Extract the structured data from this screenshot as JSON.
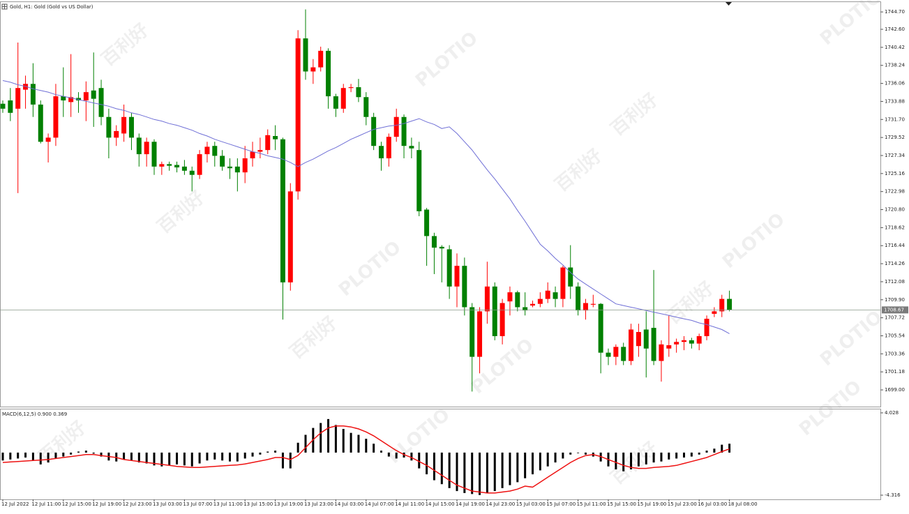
{
  "chart_data": [
    {
      "type": "candlestick",
      "title": "Gold, H1:  Gold (Gold vs US Dollar)",
      "x_labels": [
        "12 Jul 2022",
        "12 Jul 11:00",
        "12 Jul 15:00",
        "12 Jul 19:00",
        "12 Jul 23:00",
        "13 Jul 03:00",
        "13 Jul 07:00",
        "13 Jul 11:00",
        "13 Jul 15:00",
        "13 Jul 19:00",
        "13 Jul 23:00",
        "14 Jul 03:00",
        "14 Jul 07:00",
        "14 Jul 11:00",
        "14 Jul 15:00",
        "14 Jul 19:00",
        "14 Jul 23:00",
        "15 Jul 03:00",
        "15 Jul 07:00",
        "15 Jul 11:00",
        "15 Jul 15:00",
        "15 Jul 19:00",
        "15 Jul 23:00",
        "16 Jul 03:00",
        "18 Jul 08:00"
      ],
      "open": [
        1733.6,
        1734,
        1733,
        1735.3,
        1736,
        1733.5,
        1729,
        1729.5,
        1734.5,
        1733.8,
        1734.3,
        1734,
        1735.2,
        1735.5,
        1732,
        1729.5,
        1730,
        1732,
        1729.5,
        1727.5,
        1729,
        1726,
        1726.3,
        1726.2,
        1726,
        1725.5,
        1725,
        1727.5,
        1728.5,
        1727.3,
        1726,
        1726,
        1725.3,
        1727,
        1727.8,
        1728,
        1729.7,
        1729.3,
        1712,
        1723,
        1741.5,
        1737.5,
        1738,
        1740,
        1734.5,
        1733,
        1735.5,
        1735.6,
        1734.4,
        1732,
        1728.5,
        1727,
        1729.6,
        1732,
        1728.5,
        1728,
        1720.8,
        1717.6,
        1716.3,
        1716,
        1711.5,
        1714,
        1709,
        1703,
        1708.5,
        1711.5,
        1705.5,
        1709.7,
        1710.8,
        1709,
        1709.2,
        1709.4,
        1710,
        1710.8,
        1710,
        1713.8,
        1711.5,
        1708.6,
        1709.3,
        1709.4,
        1703.5,
        1703,
        1704.2,
        1702.5,
        1704.3,
        1706.3,
        1706.5,
        1702.5,
        1704,
        1704.5,
        1704.8,
        1705,
        1704.6,
        1705.5,
        1708.2,
        1708.5,
        1710
      ],
      "high": [
        1734,
        1735.5,
        1741,
        1737,
        1738.5,
        1734,
        1730,
        1736,
        1738,
        1739.6,
        1735,
        1736.3,
        1739.8,
        1736.5,
        1733,
        1731,
        1733.5,
        1732.5,
        1730,
        1729.5,
        1729.3,
        1726.6,
        1726.6,
        1726.6,
        1726.8,
        1726,
        1728,
        1729,
        1729,
        1728,
        1727,
        1727,
        1728.5,
        1729,
        1729.5,
        1730.5,
        1731,
        1729.5,
        1724,
        1742.5,
        1745,
        1739,
        1740.5,
        1740.3,
        1734.8,
        1736,
        1736,
        1736.6,
        1735,
        1732.5,
        1729,
        1730,
        1733,
        1732.3,
        1729.5,
        1729,
        1721,
        1718,
        1716.5,
        1716.5,
        1715.5,
        1715,
        1709.5,
        1709,
        1714.5,
        1712,
        1710,
        1711.5,
        1711,
        1710.8,
        1709.8,
        1710.8,
        1712,
        1711.5,
        1714,
        1716.5,
        1712,
        1710,
        1710.5,
        1709.5,
        1704,
        1704.5,
        1704.7,
        1707,
        1707,
        1708.5,
        1713.5,
        1705,
        1708,
        1705.2,
        1705.5,
        1705.3,
        1705.8,
        1708,
        1709,
        1710.5,
        1711
      ],
      "low": [
        1732.5,
        1731.5,
        1722.8,
        1733,
        1732,
        1728.8,
        1726.5,
        1728.5,
        1732,
        1732,
        1732.5,
        1731.5,
        1730.8,
        1731,
        1727,
        1728.5,
        1729,
        1728,
        1726,
        1726,
        1725,
        1725,
        1725.5,
        1725.3,
        1725,
        1723,
        1724.5,
        1726.5,
        1726,
        1725.5,
        1724.5,
        1723,
        1724,
        1726,
        1727,
        1727.5,
        1728,
        1707.5,
        1711,
        1722,
        1736.5,
        1736,
        1737.5,
        1733,
        1732,
        1732.5,
        1735,
        1733.8,
        1731,
        1728,
        1725.5,
        1726,
        1729,
        1727,
        1727,
        1720,
        1714,
        1713,
        1712,
        1710,
        1709,
        1708,
        1698.8,
        1701,
        1707,
        1705,
        1704.5,
        1708,
        1708.5,
        1708,
        1709,
        1709,
        1709.5,
        1709,
        1709,
        1710,
        1708,
        1707.5,
        1709,
        1701,
        1702,
        1702,
        1702,
        1702,
        1703,
        1700.5,
        1702,
        1700,
        1703,
        1703.5,
        1703.8,
        1704,
        1703.8,
        1705,
        1707.8,
        1707.8,
        1708.5
      ],
      "close": [
        1733,
        1732.5,
        1735.5,
        1736,
        1733.5,
        1729,
        1729.5,
        1734.5,
        1734,
        1734.4,
        1734,
        1735,
        1734.2,
        1732,
        1729.5,
        1730.3,
        1732,
        1729.5,
        1727.5,
        1729,
        1726,
        1726.3,
        1726.1,
        1725.9,
        1725.5,
        1725,
        1727.5,
        1728.4,
        1727.3,
        1726,
        1725.8,
        1725.3,
        1727,
        1727.8,
        1728,
        1729.8,
        1729.3,
        1712,
        1723,
        1741.5,
        1737.5,
        1738,
        1740,
        1734.5,
        1733,
        1735.5,
        1735.6,
        1734.4,
        1732,
        1728.5,
        1727,
        1729.6,
        1732,
        1728.5,
        1728.2,
        1720.6,
        1717.6,
        1716.2,
        1716.1,
        1711.5,
        1714,
        1709,
        1703,
        1708.5,
        1711.5,
        1705.5,
        1709.5,
        1710.8,
        1709,
        1708.6,
        1709.4,
        1710,
        1711,
        1710,
        1713.8,
        1711.5,
        1708.6,
        1709.5,
        1709.4,
        1703.5,
        1703,
        1704.2,
        1702.5,
        1706.3,
        1706,
        1704,
        1702.5,
        1704.5,
        1704.4,
        1704.8,
        1705,
        1704.6,
        1705.5,
        1707.6,
        1708.5,
        1710,
        1708.67
      ],
      "up_color": "#ff0000",
      "down_color": "#008000",
      "ma": {
        "color": "#6f6fd6",
        "values": [
          1736.4,
          1736.2,
          1735.9,
          1735.7,
          1735.4,
          1735.2,
          1735.0,
          1734.7,
          1734.5,
          1734.3,
          1734.1,
          1733.9,
          1733.7,
          1733.5,
          1733.3,
          1733.0,
          1732.8,
          1732.5,
          1732.3,
          1732.0,
          1731.7,
          1731.5,
          1731.2,
          1731.0,
          1730.7,
          1730.4,
          1730.0,
          1729.7,
          1729.3,
          1729.0,
          1728.7,
          1728.4,
          1728.1,
          1727.8,
          1727.6,
          1727.3,
          1727.1,
          1726.9,
          1726.5,
          1726.0,
          1726.5,
          1726.9,
          1727.4,
          1727.9,
          1728.3,
          1728.8,
          1729.3,
          1729.7,
          1730.1,
          1730.5,
          1730.7,
          1730.9,
          1731.0,
          1731.2,
          1731.5,
          1731.8,
          1731.4,
          1731.1,
          1730.6,
          1730.8,
          1730.0,
          1729.0,
          1728.0,
          1726.8,
          1725.6,
          1724.5,
          1723.3,
          1722.1,
          1720.7,
          1719.4,
          1718.0,
          1716.6,
          1715.8,
          1714.9,
          1714.1,
          1713.2,
          1712.4,
          1711.8,
          1711.2,
          1710.6,
          1710.0,
          1709.4,
          1709.2,
          1709.0,
          1708.8,
          1708.6,
          1708.4,
          1708.2,
          1708.0,
          1707.8,
          1707.6,
          1707.4,
          1707.1,
          1706.9,
          1706.6,
          1706.3,
          1705.8
        ]
      },
      "current_price": {
        "value": 1708.67,
        "label": "1708.67"
      },
      "ylim": [
        1696.98,
        1745.89
      ],
      "yticks": [
        {
          "value": 1744.7,
          "label": "1744.70"
        },
        {
          "value": 1742.6,
          "label": "1742.60"
        },
        1740.42,
        1738.24,
        1736.06,
        1733.88,
        {
          "value": 1731.7,
          "label": "1731.70"
        },
        1729.52,
        1727.34,
        1725.16,
        1722.98,
        {
          "value": 1720.8,
          "label": "1720.80"
        },
        1718.62,
        1716.44,
        1714.26,
        1712.08,
        {
          "value": 1709.9,
          "label": "1709.90"
        },
        1707.72,
        1705.54,
        1703.36,
        1701.18,
        {
          "value": 1699,
          "label": "1699.00"
        }
      ]
    },
    {
      "type": "macd",
      "title": "MACD(6,12,5) 0.900 0.369",
      "histogram": {
        "color": "#000000",
        "values": [
          -0.8,
          -0.7,
          -0.6,
          -0.5,
          -0.8,
          -1.2,
          -1.0,
          -0.6,
          -0.4,
          -0.2,
          0.1,
          0.2,
          -0.1,
          -0.4,
          -0.8,
          -0.9,
          -0.7,
          -0.8,
          -1.0,
          -1.1,
          -1.3,
          -1.4,
          -1.3,
          -1.2,
          -1.3,
          -1.4,
          -1.1,
          -0.8,
          -0.7,
          -0.8,
          -0.9,
          -0.9,
          -0.6,
          -0.4,
          -0.2,
          0.1,
          0.2,
          -1.6,
          -1.6,
          1.0,
          1.8,
          2.5,
          3.0,
          3.4,
          2.8,
          2.4,
          2.0,
          1.8,
          1.4,
          0.9,
          0.2,
          -0.4,
          -0.6,
          -0.5,
          -0.8,
          -1.6,
          -2.2,
          -2.8,
          -3.2,
          -3.6,
          -3.9,
          -4.1,
          -4.2,
          -4.3,
          -4.1,
          -3.9,
          -3.6,
          -3.3,
          -3.0,
          -2.6,
          -2.2,
          -1.8,
          -1.4,
          -1.0,
          -0.6,
          -0.2,
          0.0,
          -0.2,
          -0.4,
          -0.9,
          -1.4,
          -1.7,
          -1.9,
          -1.7,
          -1.4,
          -1.2,
          -1.0,
          -0.9,
          -0.7,
          -0.6,
          -0.5,
          -0.4,
          -0.2,
          0.2,
          0.4,
          0.8,
          0.9
        ]
      },
      "signal": {
        "color": "#ee1111",
        "values": [
          -1.0,
          -0.95,
          -0.9,
          -0.85,
          -0.8,
          -0.75,
          -0.7,
          -0.6,
          -0.5,
          -0.4,
          -0.3,
          -0.2,
          -0.2,
          -0.3,
          -0.4,
          -0.5,
          -0.7,
          -0.8,
          -0.9,
          -1.0,
          -1.1,
          -1.2,
          -1.3,
          -1.4,
          -1.45,
          -1.5,
          -1.5,
          -1.45,
          -1.4,
          -1.35,
          -1.3,
          -1.25,
          -1.15,
          -1.0,
          -0.85,
          -0.7,
          -0.5,
          -0.5,
          -0.7,
          -0.3,
          0.5,
          1.3,
          2.0,
          2.5,
          2.7,
          2.7,
          2.6,
          2.4,
          2.1,
          1.7,
          1.2,
          0.7,
          0.2,
          -0.2,
          -0.5,
          -0.9,
          -1.3,
          -1.8,
          -2.3,
          -2.8,
          -3.3,
          -3.6,
          -3.9,
          -4.0,
          -4.1,
          -4.1,
          -4.0,
          -3.9,
          -3.7,
          -3.4,
          -3.5,
          -3.0,
          -2.5,
          -2.0,
          -1.5,
          -1.0,
          -0.6,
          -0.3,
          -0.2,
          -0.4,
          -0.7,
          -1.0,
          -1.3,
          -1.5,
          -1.6,
          -1.6,
          -1.5,
          -1.45,
          -1.4,
          -1.3,
          -1.1,
          -0.9,
          -0.7,
          -0.5,
          -0.2,
          0.1,
          0.369
        ]
      },
      "ylim": [
        -4.74,
        4.38
      ],
      "yticks": [
        4.028,
        -4.316
      ]
    }
  ],
  "watermark": [
    "百利好",
    "PLOTIO"
  ]
}
